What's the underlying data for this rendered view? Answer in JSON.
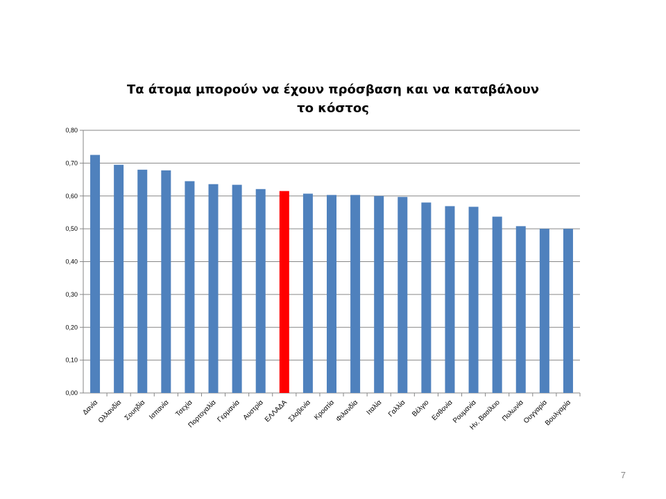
{
  "chart_data": {
    "type": "bar",
    "title_lines": [
      "Τα άτομα μπορούν να έχουν πρόσβαση και να καταβάλουν",
      "το κόστος"
    ],
    "categories": [
      "Δανία",
      "Ολλανδία",
      "Σουηδία",
      "Ισπανία",
      "Τσεχία",
      "Πορτογαλία",
      "Γερμανία",
      "Αυστρία",
      "ΕΛΛΑΔΑ",
      "Σλοβενία",
      "Κροατία",
      "Φιλανδία",
      "Ιταλία",
      "Γαλλία",
      "Βέλγιο",
      "Εσθονία",
      "Ρουμανία",
      "Ην. Βασίλειο",
      "Πολωνία",
      "Ουγγαρία",
      "Βουλγαρία"
    ],
    "values": [
      0.725,
      0.695,
      0.68,
      0.678,
      0.645,
      0.636,
      0.634,
      0.621,
      0.615,
      0.607,
      0.603,
      0.603,
      0.6,
      0.597,
      0.58,
      0.569,
      0.567,
      0.537,
      0.508,
      0.5,
      0.5
    ],
    "ylim": [
      0,
      0.8
    ],
    "yticks": [
      "0,00",
      "0,10",
      "0,20",
      "0,30",
      "0,40",
      "0,50",
      "0,60",
      "0,70",
      "0,80"
    ],
    "grid": true,
    "colors": {
      "default": "#4F81BD",
      "highlight": "#FF0000"
    },
    "highlight_category": "ΕΛΛΑΔΑ"
  },
  "page_number": "7"
}
